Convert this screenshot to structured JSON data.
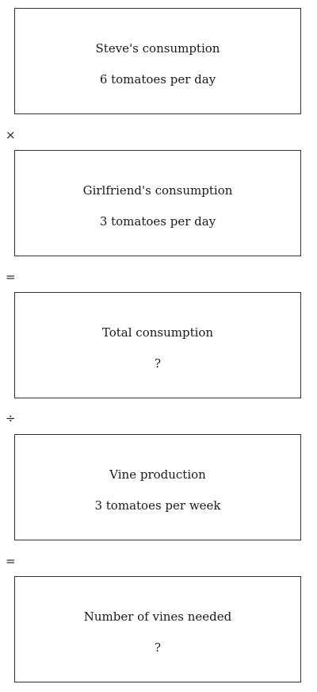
{
  "steps": [
    {
      "label": "Steve's consumption",
      "value": "6 tomatoes per day"
    },
    {
      "label": "Girlfriend's consumption",
      "value": "3 tomatoes per day"
    },
    {
      "label": "Total consumption",
      "value": "?"
    },
    {
      "label": "Vine production",
      "value": "3 tomatoes per week"
    },
    {
      "label": "Number of vines needed",
      "value": "?"
    }
  ],
  "operators": [
    "×",
    "=",
    "÷",
    "="
  ]
}
